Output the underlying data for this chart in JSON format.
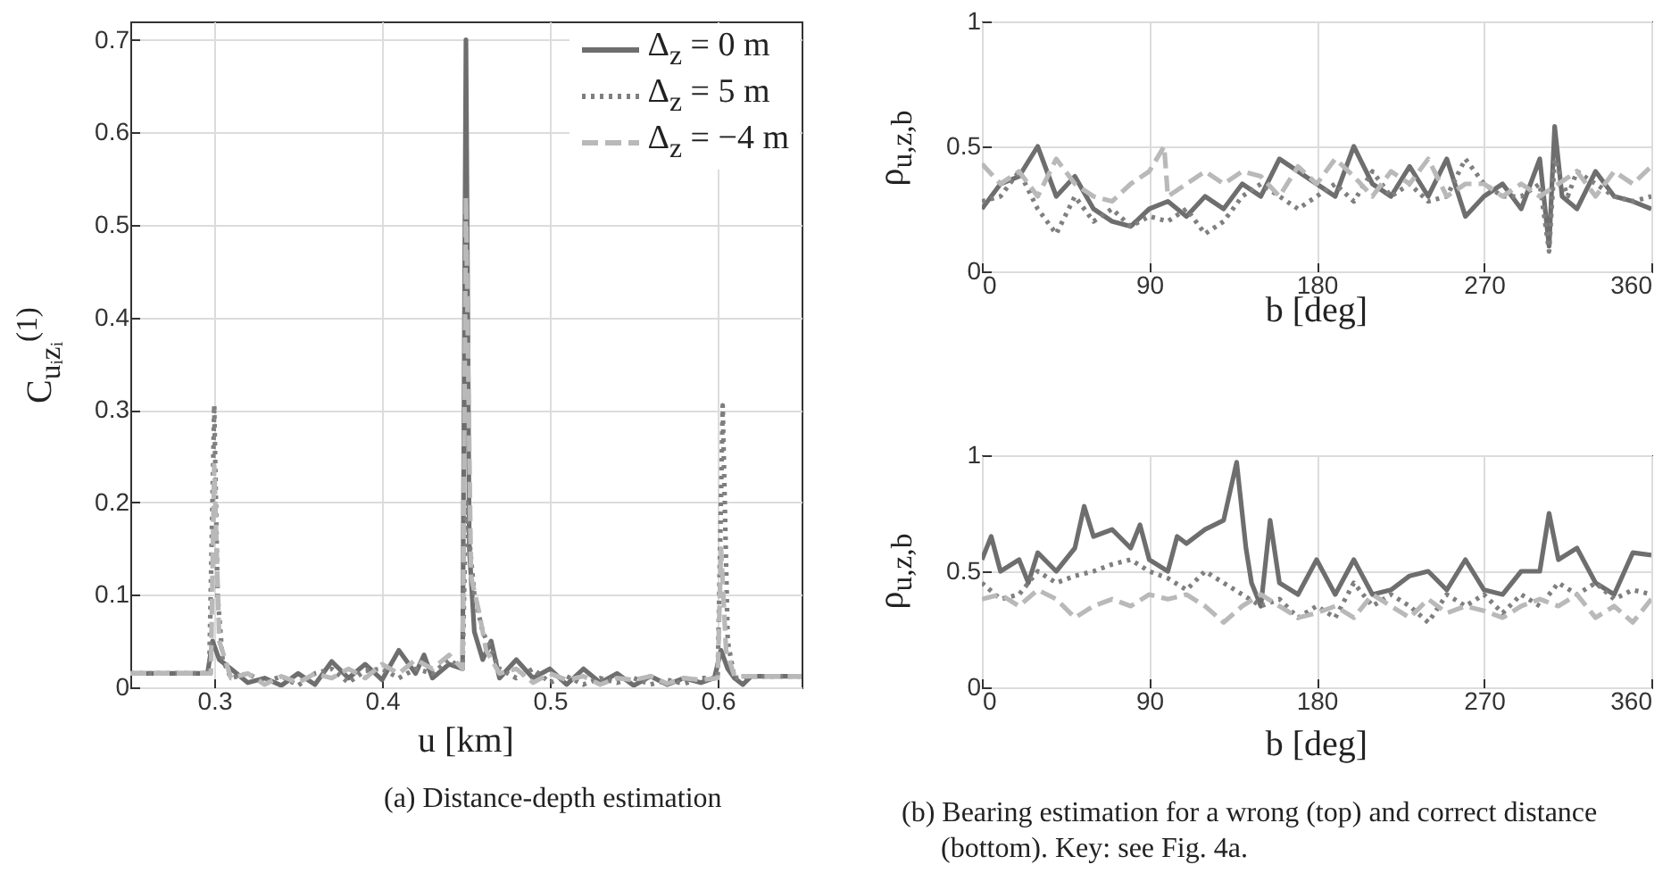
{
  "chart_data": [
    {
      "type": "line",
      "xlabel": "u [km]",
      "ylabel": "C$_{uᵢzᵢ}$$^{(1)}$",
      "xlim": [
        0.25,
        0.65
      ],
      "ylim": [
        0,
        0.72
      ],
      "xticks": [
        0.3,
        0.4,
        0.5,
        0.6
      ],
      "yticks": [
        0,
        0.1,
        0.2,
        0.3,
        0.4,
        0.5,
        0.6,
        0.7
      ],
      "grid": true,
      "legend": "top right",
      "annotations": [
        "(a) Distance-depth estimation"
      ],
      "series": [
        {
          "name": "Δ$_{z}$ = 0 m",
          "color": "#6e6e6e",
          "line_style": "solid",
          "x": [
            0.25,
            0.296,
            0.299,
            0.303,
            0.31,
            0.32,
            0.33,
            0.34,
            0.35,
            0.36,
            0.37,
            0.38,
            0.39,
            0.4,
            0.41,
            0.42,
            0.425,
            0.43,
            0.44,
            0.448,
            0.45,
            0.452,
            0.455,
            0.46,
            0.465,
            0.47,
            0.48,
            0.49,
            0.5,
            0.51,
            0.52,
            0.53,
            0.54,
            0.55,
            0.56,
            0.57,
            0.58,
            0.59,
            0.598,
            0.602,
            0.606,
            0.61,
            0.615,
            0.62,
            0.65
          ],
          "values": [
            0.015,
            0.015,
            0.05,
            0.03,
            0.02,
            0.005,
            0.01,
            0.002,
            0.015,
            0.003,
            0.028,
            0.01,
            0.025,
            0.008,
            0.04,
            0.015,
            0.035,
            0.01,
            0.025,
            0.02,
            0.7,
            0.15,
            0.06,
            0.03,
            0.05,
            0.01,
            0.03,
            0.01,
            0.02,
            0.003,
            0.02,
            0.005,
            0.015,
            0.002,
            0.012,
            0.003,
            0.01,
            0.005,
            0.01,
            0.04,
            0.02,
            0.01,
            0.003,
            0.012,
            0.012
          ]
        },
        {
          "name": "Δ$_{z}$ = 5 m",
          "color": "#7f7f7f",
          "line_style": "dotted",
          "x": [
            0.25,
            0.297,
            0.3,
            0.302,
            0.305,
            0.31,
            0.32,
            0.33,
            0.34,
            0.35,
            0.36,
            0.37,
            0.38,
            0.39,
            0.4,
            0.41,
            0.42,
            0.43,
            0.44,
            0.448,
            0.45,
            0.455,
            0.46,
            0.47,
            0.48,
            0.49,
            0.5,
            0.51,
            0.52,
            0.53,
            0.54,
            0.55,
            0.56,
            0.57,
            0.58,
            0.59,
            0.6,
            0.603,
            0.606,
            0.61,
            0.62,
            0.65
          ],
          "values": [
            0.015,
            0.015,
            0.305,
            0.1,
            0.03,
            0.01,
            0.015,
            0.005,
            0.012,
            0.002,
            0.015,
            0.02,
            0.005,
            0.018,
            0.02,
            0.01,
            0.02,
            0.015,
            0.03,
            0.02,
            0.2,
            0.1,
            0.06,
            0.02,
            0.01,
            0.02,
            0.005,
            0.012,
            0.003,
            0.01,
            0.005,
            0.01,
            0.003,
            0.008,
            0.004,
            0.01,
            0.01,
            0.305,
            0.05,
            0.01,
            0.012,
            0.012
          ]
        },
        {
          "name": "Δ$_{z}$ = −4 m",
          "color": "#b9b9b9",
          "line_style": "dashed",
          "x": [
            0.25,
            0.298,
            0.3,
            0.303,
            0.31,
            0.32,
            0.33,
            0.34,
            0.35,
            0.36,
            0.37,
            0.38,
            0.39,
            0.4,
            0.41,
            0.42,
            0.43,
            0.44,
            0.448,
            0.45,
            0.453,
            0.458,
            0.462,
            0.47,
            0.48,
            0.49,
            0.5,
            0.51,
            0.52,
            0.53,
            0.54,
            0.55,
            0.56,
            0.57,
            0.58,
            0.59,
            0.6,
            0.602,
            0.605,
            0.61,
            0.62,
            0.65
          ],
          "values": [
            0.015,
            0.015,
            0.24,
            0.05,
            0.01,
            0.015,
            0.003,
            0.012,
            0.005,
            0.015,
            0.01,
            0.02,
            0.01,
            0.025,
            0.015,
            0.03,
            0.02,
            0.035,
            0.02,
            0.53,
            0.12,
            0.08,
            0.04,
            0.015,
            0.02,
            0.005,
            0.015,
            0.008,
            0.012,
            0.003,
            0.01,
            0.008,
            0.012,
            0.004,
            0.01,
            0.008,
            0.01,
            0.15,
            0.04,
            0.012,
            0.012,
            0.012
          ]
        }
      ]
    },
    {
      "type": "line",
      "xlabel": "b [deg]",
      "ylabel": "ρ$_{u,z,b}$",
      "xlim": [
        0,
        360
      ],
      "ylim": [
        0,
        1
      ],
      "xticks": [
        0,
        90,
        180,
        270,
        360
      ],
      "yticks": [
        0,
        0.5,
        1
      ],
      "grid": true,
      "series": [
        {
          "color": "#6e6e6e",
          "line_style": "solid",
          "x": [
            0,
            10,
            20,
            30,
            40,
            50,
            60,
            70,
            80,
            90,
            100,
            110,
            120,
            130,
            140,
            150,
            160,
            170,
            180,
            190,
            200,
            210,
            220,
            230,
            240,
            250,
            260,
            270,
            280,
            290,
            300,
            305,
            308,
            312,
            320,
            330,
            340,
            350,
            360
          ],
          "values": [
            0.25,
            0.35,
            0.38,
            0.5,
            0.3,
            0.38,
            0.25,
            0.2,
            0.18,
            0.25,
            0.28,
            0.22,
            0.3,
            0.25,
            0.35,
            0.3,
            0.45,
            0.4,
            0.35,
            0.3,
            0.5,
            0.35,
            0.3,
            0.42,
            0.3,
            0.45,
            0.22,
            0.3,
            0.35,
            0.25,
            0.45,
            0.1,
            0.58,
            0.3,
            0.25,
            0.4,
            0.3,
            0.28,
            0.25
          ]
        },
        {
          "color": "#7f7f7f",
          "line_style": "dotted",
          "x": [
            0,
            10,
            20,
            30,
            40,
            50,
            60,
            70,
            80,
            90,
            100,
            110,
            120,
            130,
            140,
            150,
            160,
            170,
            180,
            190,
            200,
            210,
            220,
            230,
            240,
            250,
            260,
            270,
            280,
            290,
            300,
            305,
            308,
            315,
            320,
            330,
            340,
            350,
            360
          ],
          "values": [
            0.28,
            0.3,
            0.4,
            0.25,
            0.15,
            0.3,
            0.2,
            0.25,
            0.18,
            0.22,
            0.2,
            0.25,
            0.15,
            0.2,
            0.3,
            0.35,
            0.3,
            0.25,
            0.3,
            0.35,
            0.28,
            0.4,
            0.3,
            0.35,
            0.28,
            0.3,
            0.45,
            0.35,
            0.3,
            0.3,
            0.35,
            0.08,
            0.45,
            0.3,
            0.4,
            0.35,
            0.3,
            0.28,
            0.3
          ]
        },
        {
          "color": "#b9b9b9",
          "line_style": "dashed",
          "x": [
            0,
            10,
            20,
            30,
            40,
            50,
            60,
            70,
            80,
            90,
            98,
            100,
            110,
            120,
            130,
            140,
            150,
            160,
            170,
            180,
            190,
            200,
            210,
            220,
            230,
            240,
            250,
            260,
            270,
            280,
            290,
            300,
            310,
            320,
            330,
            340,
            350,
            360
          ],
          "values": [
            0.43,
            0.35,
            0.4,
            0.3,
            0.45,
            0.35,
            0.3,
            0.28,
            0.35,
            0.4,
            0.5,
            0.3,
            0.35,
            0.4,
            0.35,
            0.4,
            0.38,
            0.3,
            0.42,
            0.35,
            0.45,
            0.38,
            0.3,
            0.4,
            0.35,
            0.45,
            0.3,
            0.35,
            0.35,
            0.3,
            0.35,
            0.3,
            0.35,
            0.4,
            0.3,
            0.4,
            0.35,
            0.42
          ]
        }
      ]
    },
    {
      "type": "line",
      "xlabel": "b [deg]",
      "ylabel": "ρ$_{u,z,b}$",
      "xlim": [
        0,
        360
      ],
      "ylim": [
        0,
        1
      ],
      "xticks": [
        0,
        90,
        180,
        270,
        360
      ],
      "yticks": [
        0,
        0.5,
        1
      ],
      "grid": true,
      "annotations": [
        "(b) Bearing estimation for a wrong (top) and correct distance (bottom). Key: see Fig. 4a."
      ],
      "series": [
        {
          "color": "#6e6e6e",
          "line_style": "solid",
          "x": [
            0,
            5,
            10,
            20,
            25,
            30,
            40,
            50,
            55,
            60,
            70,
            80,
            85,
            90,
            100,
            105,
            110,
            120,
            130,
            137,
            142,
            145,
            150,
            155,
            160,
            170,
            180,
            190,
            200,
            210,
            220,
            230,
            240,
            250,
            260,
            270,
            280,
            290,
            300,
            305,
            310,
            320,
            330,
            340,
            350,
            360
          ],
          "values": [
            0.55,
            0.65,
            0.5,
            0.55,
            0.45,
            0.58,
            0.5,
            0.6,
            0.78,
            0.65,
            0.68,
            0.6,
            0.7,
            0.55,
            0.5,
            0.65,
            0.62,
            0.68,
            0.72,
            0.97,
            0.6,
            0.45,
            0.35,
            0.72,
            0.45,
            0.4,
            0.55,
            0.4,
            0.55,
            0.4,
            0.42,
            0.48,
            0.5,
            0.42,
            0.55,
            0.42,
            0.4,
            0.5,
            0.5,
            0.75,
            0.55,
            0.6,
            0.45,
            0.4,
            0.58,
            0.57
          ]
        },
        {
          "color": "#7f7f7f",
          "line_style": "dotted",
          "x": [
            0,
            10,
            20,
            30,
            40,
            50,
            60,
            70,
            80,
            90,
            100,
            110,
            120,
            130,
            140,
            150,
            160,
            170,
            180,
            190,
            200,
            210,
            220,
            230,
            240,
            250,
            260,
            270,
            280,
            290,
            300,
            310,
            320,
            330,
            340,
            350,
            360
          ],
          "values": [
            0.45,
            0.38,
            0.4,
            0.5,
            0.45,
            0.48,
            0.5,
            0.53,
            0.55,
            0.5,
            0.47,
            0.42,
            0.5,
            0.45,
            0.4,
            0.35,
            0.38,
            0.3,
            0.35,
            0.3,
            0.45,
            0.35,
            0.4,
            0.35,
            0.28,
            0.4,
            0.35,
            0.4,
            0.32,
            0.4,
            0.35,
            0.45,
            0.4,
            0.45,
            0.38,
            0.42,
            0.4
          ]
        },
        {
          "color": "#b9b9b9",
          "line_style": "dashed",
          "x": [
            0,
            10,
            20,
            30,
            40,
            50,
            60,
            70,
            80,
            90,
            100,
            110,
            120,
            130,
            140,
            150,
            160,
            170,
            180,
            190,
            200,
            210,
            220,
            230,
            240,
            250,
            260,
            270,
            280,
            290,
            300,
            310,
            320,
            330,
            340,
            350,
            360
          ],
          "values": [
            0.38,
            0.4,
            0.35,
            0.42,
            0.38,
            0.3,
            0.35,
            0.38,
            0.35,
            0.4,
            0.38,
            0.4,
            0.35,
            0.28,
            0.35,
            0.4,
            0.35,
            0.3,
            0.32,
            0.35,
            0.3,
            0.4,
            0.35,
            0.3,
            0.38,
            0.32,
            0.35,
            0.33,
            0.3,
            0.35,
            0.38,
            0.35,
            0.4,
            0.3,
            0.35,
            0.28,
            0.38
          ]
        }
      ]
    }
  ]
}
